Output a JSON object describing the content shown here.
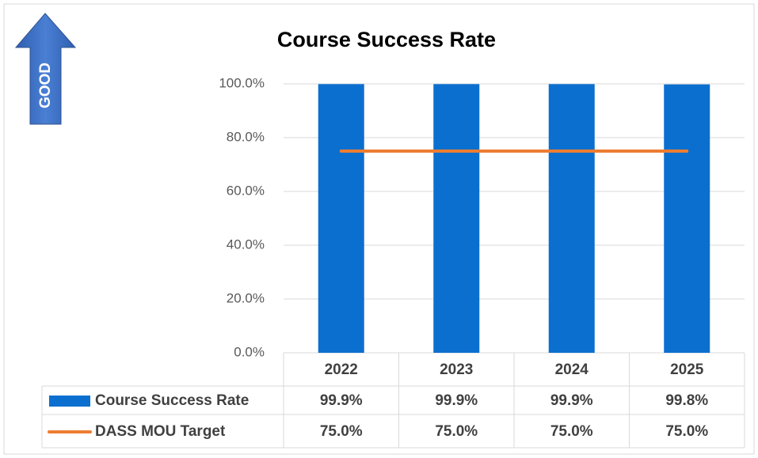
{
  "chart_data": {
    "type": "bar",
    "title": "Course Success Rate",
    "badge": "GOOD",
    "categories": [
      "2022",
      "2023",
      "2024",
      "2025"
    ],
    "series": [
      {
        "name": "Course Success Rate",
        "type": "bar",
        "color": "#0b6fcf",
        "values": [
          99.9,
          99.9,
          99.9,
          99.8
        ],
        "value_labels": [
          "99.9%",
          "99.9%",
          "99.9%",
          "99.8%"
        ]
      },
      {
        "name": "DASS MOU Target",
        "type": "line",
        "color": "#ed7d31",
        "values": [
          75.0,
          75.0,
          75.0,
          75.0
        ],
        "value_labels": [
          "75.0%",
          "75.0%",
          "75.0%",
          "75.0%"
        ]
      }
    ],
    "ylim": [
      0,
      100
    ],
    "yticks": [
      {
        "value": 0,
        "label": "0.0%"
      },
      {
        "value": 20,
        "label": "20.0%"
      },
      {
        "value": 40,
        "label": "40.0%"
      },
      {
        "value": 60,
        "label": "60.0%"
      },
      {
        "value": 80,
        "label": "80.0%"
      },
      {
        "value": 100,
        "label": "100.0%"
      }
    ],
    "grid": true,
    "data_table": true
  }
}
